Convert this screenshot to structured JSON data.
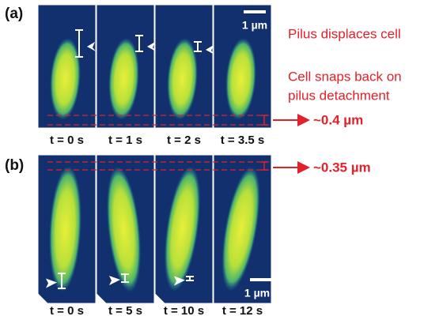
{
  "panels": [
    {
      "label": "(a)",
      "frames": [
        "t = 0 s",
        "t = 1 s",
        "t = 2 s",
        "t = 3.5 s"
      ],
      "scale_bar": "1 µm",
      "annotations": [
        "Pilus displaces cell",
        "Cell snaps back on",
        "pilus detachment"
      ],
      "measurement": "~0.4 µm"
    },
    {
      "label": "(b)",
      "frames": [
        "t = 0 s",
        "t = 5 s",
        "t = 10 s",
        "t = 12 s"
      ],
      "scale_bar": "1 µm",
      "measurement": "~0.35 µm"
    }
  ]
}
